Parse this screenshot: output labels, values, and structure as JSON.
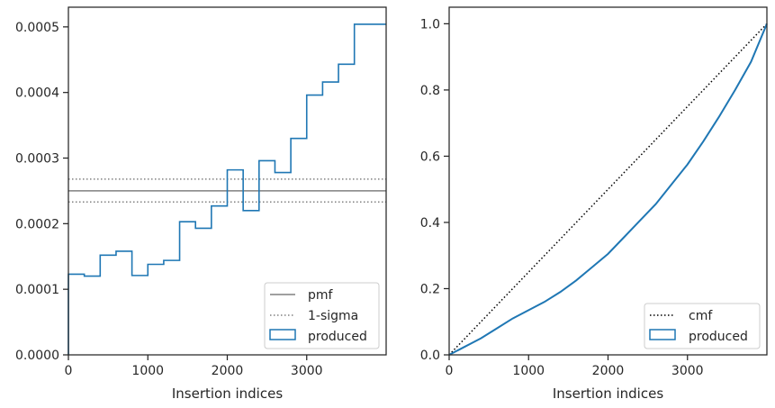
{
  "chart_data": [
    {
      "type": "histogram",
      "xlabel": "Insertion indices",
      "ylabel": "",
      "xlim": [
        0,
        4000
      ],
      "ylim": [
        0,
        0.00053
      ],
      "xticks": [
        0,
        1000,
        2000,
        3000
      ],
      "xtick_labels": [
        "0",
        "1000",
        "2000",
        "3000"
      ],
      "yticks": [
        0,
        0.0001,
        0.0002,
        0.0003,
        0.0004,
        0.0005
      ],
      "ytick_labels": [
        "0.0000",
        "0.0001",
        "0.0002",
        "0.0003",
        "0.0004",
        "0.0005"
      ],
      "bin_edges": [
        0,
        200,
        400,
        600,
        800,
        1000,
        1200,
        1400,
        1600,
        1800,
        2000,
        2200,
        2400,
        2600,
        2800,
        3000,
        3200,
        3400,
        3600,
        3800,
        4000
      ],
      "values": [
        0.000123,
        0.00012,
        0.000152,
        0.000158,
        0.000121,
        0.000138,
        0.000144,
        0.000203,
        0.000193,
        0.000227,
        0.000282,
        0.00022,
        0.000296,
        0.000278,
        0.00033,
        0.000396,
        0.000416,
        0.000443,
        0.000504,
        0.000504
      ],
      "reference_lines": {
        "pmf": 0.00025,
        "sigma_upper": 0.000268,
        "sigma_lower": 0.000233
      },
      "legend": {
        "position": "lower right",
        "entries": [
          {
            "label": "pmf",
            "style": "solid",
            "color": "#808080"
          },
          {
            "label": "1-sigma",
            "style": "dotted",
            "color": "#808080"
          },
          {
            "label": "produced",
            "style": "box",
            "color": "#1f77b4"
          }
        ]
      },
      "grid": false
    },
    {
      "type": "line",
      "xlabel": "Insertion indices",
      "ylabel": "",
      "xlim": [
        0,
        4000
      ],
      "ylim": [
        0,
        1.05
      ],
      "xticks": [
        0,
        1000,
        2000,
        3000
      ],
      "xtick_labels": [
        "0",
        "1000",
        "2000",
        "3000"
      ],
      "yticks": [
        0,
        0.2,
        0.4,
        0.6,
        0.8,
        1.0
      ],
      "ytick_labels": [
        "0.0",
        "0.2",
        "0.4",
        "0.6",
        "0.8",
        "1.0"
      ],
      "series": [
        {
          "name": "cmf",
          "style": "dotted",
          "color": "#000000",
          "x": [
            0,
            4000
          ],
          "y": [
            0,
            1.0
          ]
        },
        {
          "name": "produced",
          "style": "solid",
          "color": "#1f77b4",
          "x": [
            0,
            200,
            400,
            600,
            800,
            1000,
            1200,
            1400,
            1600,
            1800,
            2000,
            2200,
            2400,
            2600,
            2800,
            3000,
            3200,
            3400,
            3600,
            3800,
            4000
          ],
          "y": [
            0,
            0.025,
            0.05,
            0.08,
            0.11,
            0.135,
            0.16,
            0.19,
            0.225,
            0.265,
            0.305,
            0.355,
            0.405,
            0.455,
            0.515,
            0.575,
            0.645,
            0.72,
            0.8,
            0.885,
            1.0
          ]
        }
      ],
      "legend": {
        "position": "lower right",
        "entries": [
          {
            "label": "cmf",
            "style": "dotted",
            "color": "#000000"
          },
          {
            "label": "produced",
            "style": "box",
            "color": "#1f77b4"
          }
        ]
      },
      "grid": false
    }
  ]
}
